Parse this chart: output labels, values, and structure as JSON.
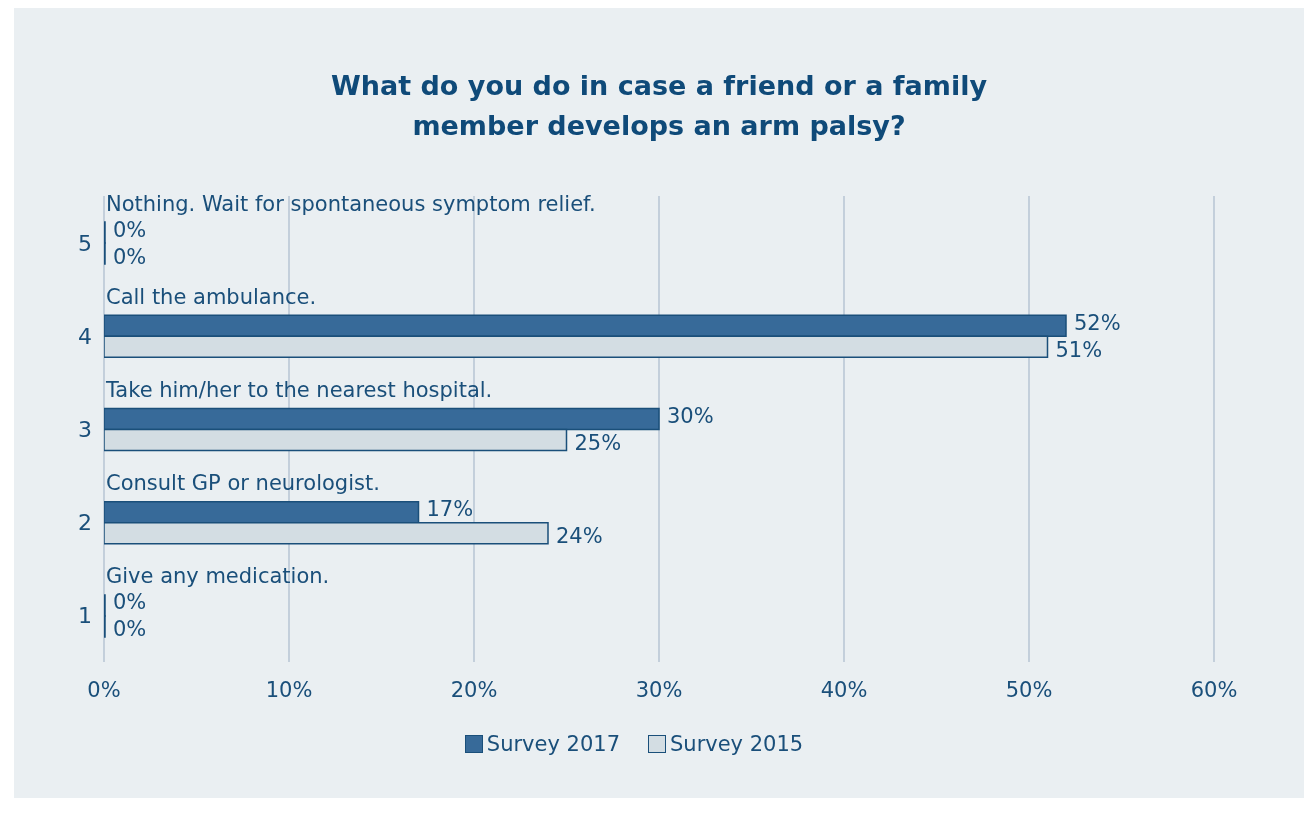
{
  "chart_data": {
    "type": "bar",
    "orientation": "horizontal",
    "title": "What do you do in case a friend or a family member develops an arm palsy?",
    "categories": [
      "5",
      "4",
      "3",
      "2",
      "1"
    ],
    "series": [
      {
        "name": "Survey 2017",
        "color": "#376a99",
        "values": [
          0,
          52,
          30,
          17,
          0
        ],
        "value_labels": [
          "0%",
          "52%",
          "30%",
          "17%",
          "0%"
        ]
      },
      {
        "name": "Survey 2015",
        "color": "#d3dde3",
        "values": [
          0,
          51,
          25,
          24,
          0
        ],
        "value_labels": [
          "0%",
          "51%",
          "25%",
          "24%",
          "0%"
        ]
      }
    ],
    "annotations": [
      "Nothing. Wait for spontaneous symptom relief.",
      "Call the ambulance.",
      "Take him/her to the nearest hospital.",
      "Consult GP or neurologist.",
      "Give any medication."
    ],
    "xlim": [
      0,
      60
    ],
    "xticks": [
      {
        "value": 0,
        "label": "0%"
      },
      {
        "value": 10,
        "label": "10%"
      },
      {
        "value": 20,
        "label": "20%"
      },
      {
        "value": 30,
        "label": "30%"
      },
      {
        "value": 40,
        "label": "40%"
      },
      {
        "value": 50,
        "label": "50%"
      },
      {
        "value": 60,
        "label": "60%"
      }
    ],
    "grid": "x",
    "legend": "bottom"
  }
}
